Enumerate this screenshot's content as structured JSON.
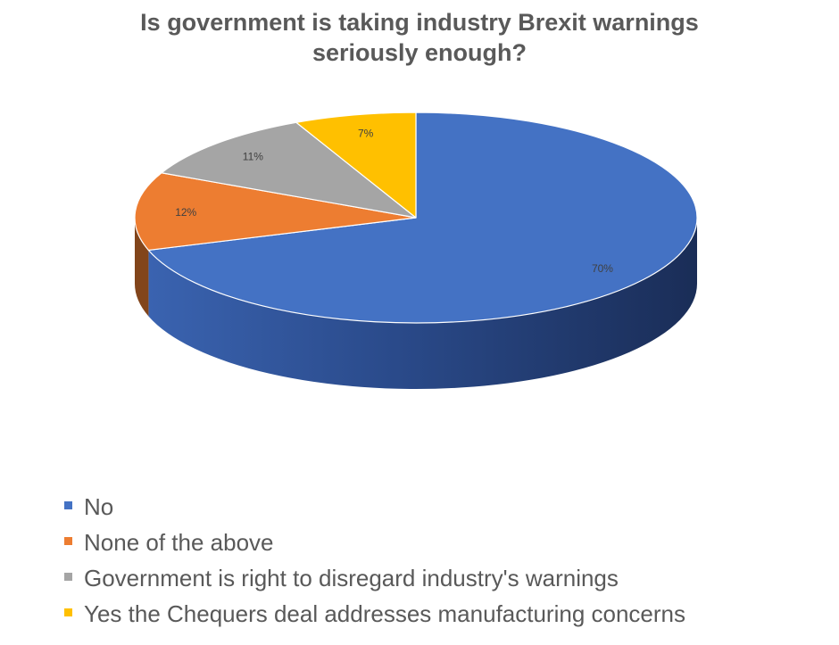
{
  "chart_data": {
    "type": "pie",
    "title_lines": [
      "Is government is taking industry Brexit warnings",
      "seriously enough?"
    ],
    "categories": [
      "No",
      "None of the above",
      "Government is right to disregard industry's warnings",
      "Yes the Chequers deal addresses manufacturing concerns"
    ],
    "values": [
      70,
      12,
      11,
      7
    ],
    "data_labels": [
      "70%",
      "12%",
      "11%",
      "7%"
    ],
    "colors": [
      "#4472C4",
      "#ED7D31",
      "#A5A5A5",
      "#FFC000"
    ],
    "legend_position": "bottom-left",
    "style": "3d"
  }
}
